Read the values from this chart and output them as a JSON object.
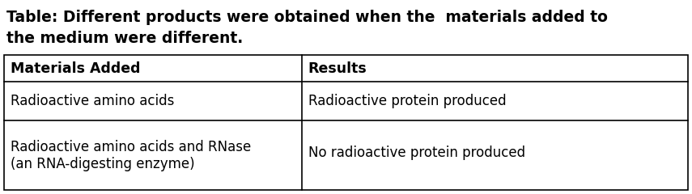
{
  "title_line1": "Table: Different products were obtained when the  materials added to",
  "title_line2": "the medium were different.",
  "col1_header": "Materials Added",
  "col2_header": "Results",
  "row1_col1": "Radioactive amino acids",
  "row1_col2": "Radioactive protein produced",
  "row2_col1_line1": "Radioactive amino acids and RNase",
  "row2_col1_line2": "(an RNA-digesting enzyme)",
  "row2_col2": "No radioactive protein produced",
  "bg_color": "#ffffff",
  "border_color": "#000000",
  "title_fontsize": 13.5,
  "header_fontsize": 12.5,
  "cell_fontsize": 12.0,
  "fig_width": 8.55,
  "fig_height": 2.4,
  "dpi": 100
}
